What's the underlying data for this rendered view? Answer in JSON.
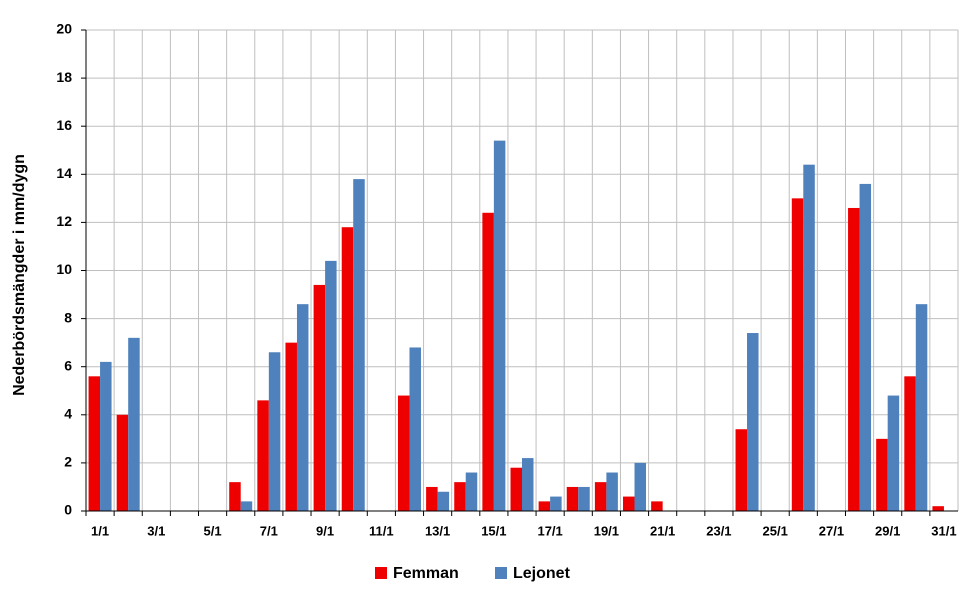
{
  "chart_data": {
    "type": "bar",
    "y_label": "Nederbördsmängder i mm/dygn",
    "categories": [
      "1/1",
      null,
      "3/1",
      null,
      "5/1",
      null,
      "7/1",
      null,
      "9/1",
      null,
      "11/1",
      null,
      "13/1",
      null,
      "15/1",
      null,
      "17/1",
      null,
      "19/1",
      null,
      "21/1",
      null,
      "23/1",
      null,
      "25/1",
      null,
      "27/1",
      null,
      "29/1",
      null,
      "31/1"
    ],
    "series": [
      {
        "name": "Femman",
        "color": "#ee0000",
        "values": [
          5.6,
          4.0,
          0,
          0,
          0,
          1.2,
          4.6,
          7.0,
          9.4,
          11.8,
          0,
          4.8,
          1.0,
          1.2,
          12.4,
          1.8,
          0.4,
          1.0,
          1.2,
          0.6,
          0.4,
          0,
          0,
          3.4,
          0,
          13.0,
          0,
          12.6,
          3.0,
          5.6,
          0.2
        ]
      },
      {
        "name": "Lejonet",
        "color": "#4f81bd",
        "values": [
          6.2,
          7.2,
          0,
          0,
          0,
          0.4,
          6.6,
          8.6,
          10.4,
          13.8,
          0,
          6.8,
          0.8,
          1.6,
          15.4,
          2.2,
          0.6,
          1.0,
          1.6,
          2.0,
          0,
          0,
          0,
          7.4,
          0,
          14.4,
          0,
          13.6,
          4.8,
          8.6,
          0
        ]
      }
    ],
    "ylim": [
      0,
      20
    ],
    "yticks": [
      0,
      2,
      4,
      6,
      8,
      10,
      12,
      14,
      16,
      18,
      20
    ],
    "grid": true,
    "legend": "bottom"
  }
}
